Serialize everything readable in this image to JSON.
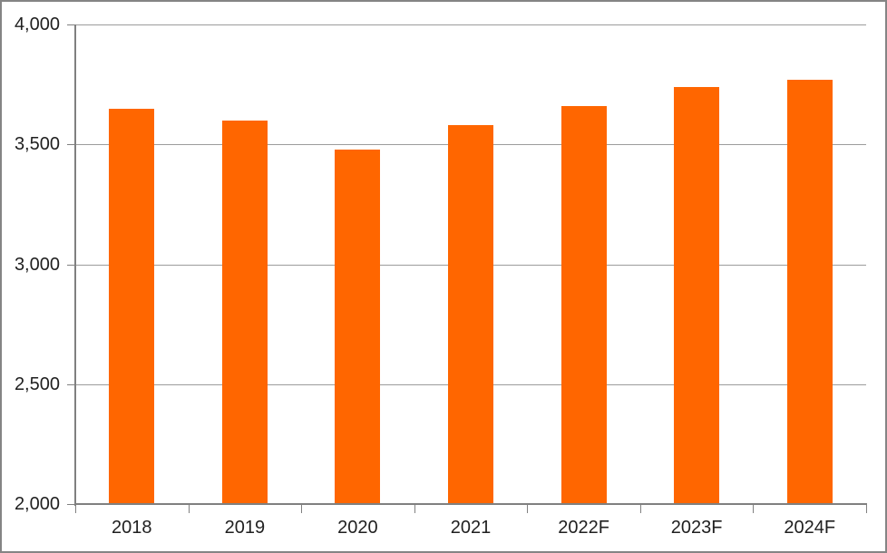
{
  "chart_data": {
    "type": "bar",
    "title": "",
    "xlabel": "",
    "ylabel": "",
    "categories": [
      "2018",
      "2019",
      "2020",
      "2021",
      "2022F",
      "2023F",
      "2024F"
    ],
    "values": [
      3650,
      3600,
      3480,
      3580,
      3660,
      3740,
      3770
    ],
    "ylim": [
      2000,
      4000
    ],
    "ytick_step": 500,
    "ytick_labels": [
      "2,000",
      "2,500",
      "3,000",
      "3,500",
      "4,000"
    ],
    "grid": true,
    "legend": "none",
    "colors": {
      "bar": "#ff6600",
      "axis": "#808080",
      "gridline": "#9c9c9c",
      "text": "#1f1f1f",
      "frame_border": "#848484",
      "background": "#ffffff"
    }
  }
}
